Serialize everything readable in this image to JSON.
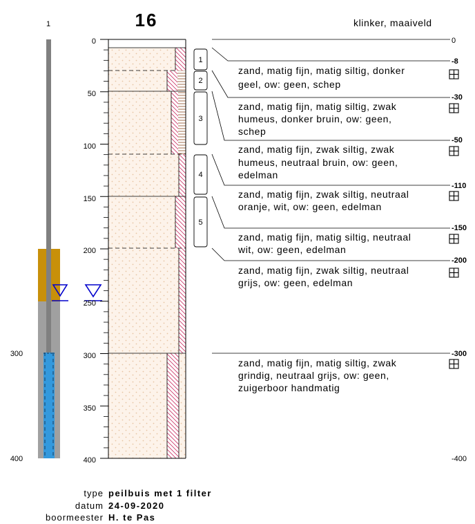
{
  "well": {
    "label": "1",
    "depth_300": "300",
    "depth_400": "400"
  },
  "boring": {
    "id": "16",
    "surface": "klinker, maaiveld",
    "axis_ticks": [
      "0",
      "50",
      "100",
      "150",
      "200",
      "250",
      "300",
      "350",
      "400"
    ],
    "right_scale": {
      "top": "0",
      "bottom": "-400"
    },
    "samples": [
      "1",
      "2",
      "3",
      "4",
      "5"
    ],
    "layers": [
      {
        "depth": "-8",
        "lines": [
          "zand, matig fijn, matig siltig, donker",
          "geel, ow: geen, schep"
        ]
      },
      {
        "depth": "-30",
        "lines": [
          "zand, matig fijn, matig siltig, zwak",
          "humeus, donker bruin, ow: geen,",
          "schep"
        ]
      },
      {
        "depth": "-50",
        "lines": [
          "zand, matig fijn, zwak siltig, zwak",
          "humeus, neutraal bruin, ow: geen,",
          "edelman"
        ]
      },
      {
        "depth": "-110",
        "lines": [
          "zand, matig fijn, zwak siltig, neutraal",
          "oranje, wit, ow: geen, edelman"
        ]
      },
      {
        "depth": "-150",
        "lines": [
          "zand, matig fijn, matig siltig, neutraal",
          "wit, ow: geen, edelman"
        ]
      },
      {
        "depth": "-200",
        "lines": [
          "zand, matig fijn, zwak siltig, neutraal",
          "grijs, ow: geen, edelman"
        ]
      },
      {
        "depth": "-300",
        "lines": [
          "zand, matig fijn, matig siltig, zwak",
          "grindig, neutraal grijs, ow: geen,",
          "zuigerboor handmatig"
        ]
      }
    ]
  },
  "meta": {
    "type_label": "type",
    "type_value": "peilbuis met 1 filter",
    "date_label": "datum",
    "date_value": "24-09-2020",
    "driller_label": "boormeester",
    "driller_value": "H. te Pas"
  },
  "colors": {
    "casing": "#808080",
    "bentonite": "#c8900a",
    "backfill": "#a0a0a0",
    "filter": "#3399dd",
    "water_marker": "#0000cc",
    "sand_dots": "#e8c9a8",
    "hatch": "#cc3366",
    "humus_hatch": "#8a4a20"
  }
}
